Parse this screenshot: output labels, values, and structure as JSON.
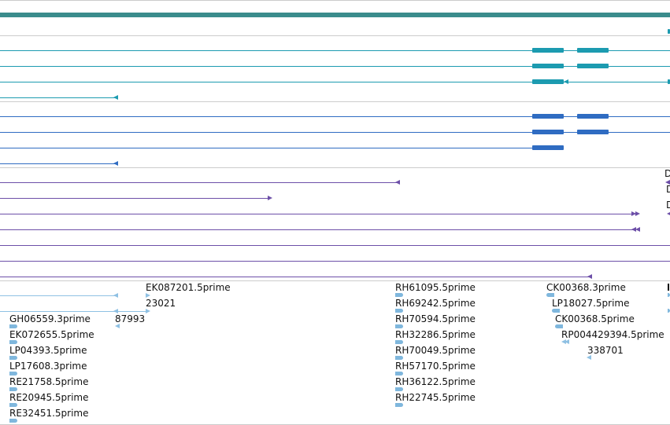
{
  "colors": {
    "scaffold": "#3a8c8c",
    "teal": "#1c9bb0",
    "blue": "#2f6cc2",
    "purple": "#6d4fa8",
    "est": "#8fc1e3",
    "separator": "#cccccc"
  },
  "tracks": {
    "est_labels": [
      "EK087201.5prime",
      "23021",
      "87993",
      "GH06559.3prime",
      "EK072655.5prime",
      "LP04393.5prime",
      "LP17608.3prime",
      "RE21758.5prime",
      "RE20945.5prime",
      "RE32451.5prime",
      "RH61095.5prime",
      "RH69242.5prime",
      "RH70594.5prime",
      "RH32286.5prime",
      "RH70049.5prime",
      "RH57170.5prime",
      "RH36122.5prime",
      "RH22745.5prime",
      "CK00368.3prime",
      "LP18027.5prime",
      "CK00368.5prime",
      "RP004429394.5prime",
      "338701"
    ],
    "edge_labels": [
      "D",
      "D",
      "D"
    ]
  }
}
